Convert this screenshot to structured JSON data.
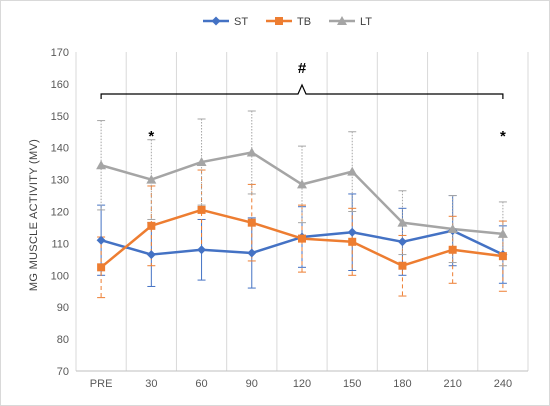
{
  "chart_data": {
    "type": "line",
    "categories": [
      "PRE",
      "30",
      "60",
      "90",
      "120",
      "150",
      "180",
      "210",
      "240"
    ],
    "ylabel": "MG MUSCLE ACTIVITY (MV)",
    "xlabel": "",
    "ylim": [
      70,
      170
    ],
    "yticks": [
      70,
      80,
      90,
      100,
      110,
      120,
      130,
      140,
      150,
      160,
      170
    ],
    "grid": "vertical",
    "legend": "top-center",
    "series": [
      {
        "name": "ST",
        "color": "#4472C4",
        "marker": "diamond",
        "error_style": "solid",
        "values": [
          111,
          106.5,
          108,
          107,
          112,
          113.5,
          110.5,
          114,
          106.5
        ],
        "errors": [
          11,
          10,
          9.5,
          11,
          9.5,
          12,
          10.5,
          11,
          9
        ]
      },
      {
        "name": "TB",
        "color": "#ED7D31",
        "marker": "square",
        "error_style": "dashed",
        "values": [
          102.5,
          115.5,
          120.5,
          116.5,
          111.5,
          110.5,
          103,
          108,
          106
        ],
        "errors": [
          9.5,
          12.5,
          12.5,
          12,
          10.5,
          10.5,
          9.5,
          10.5,
          11
        ]
      },
      {
        "name": "LT",
        "color": "#A5A5A5",
        "marker": "triangle",
        "error_style": "dotted",
        "values": [
          134.5,
          130,
          135.5,
          138.5,
          128.5,
          132.5,
          116.5,
          114.5,
          113
        ],
        "errors": [
          14,
          12.5,
          13.5,
          13,
          12,
          12.5,
          10,
          10.5,
          10
        ]
      }
    ],
    "annotations": [
      {
        "text": "#",
        "type": "bracket",
        "from": "PRE",
        "to": "240"
      },
      {
        "text": "*",
        "type": "marker",
        "at": "30"
      },
      {
        "text": "*",
        "type": "marker",
        "at": "240"
      }
    ]
  }
}
